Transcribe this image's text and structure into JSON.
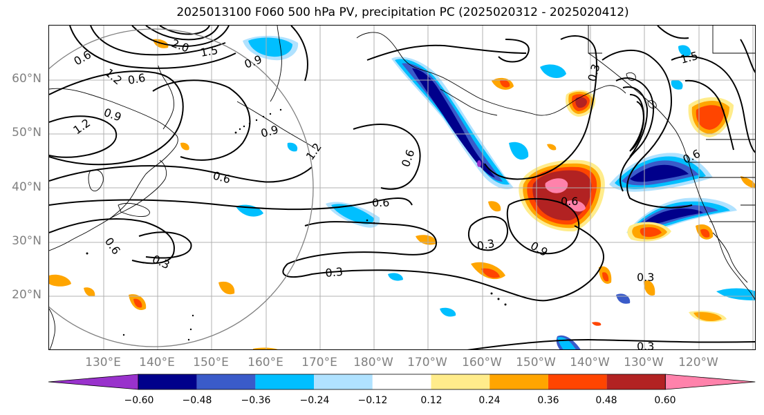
{
  "title": "2025013100 F060 500 hPa PV, precipitation PC (2025020312 - 2025020412)",
  "lat_labels": [
    "60°N",
    "50°N",
    "40°N",
    "30°N",
    "20°N"
  ],
  "lon_labels": [
    "130°E",
    "140°E",
    "150°E",
    "160°E",
    "170°E",
    "180°W",
    "170°W",
    "160°W",
    "150°W",
    "140°W",
    "130°W",
    "120°W"
  ],
  "colorbar": {
    "ticks": [
      "−0.60",
      "−0.48",
      "−0.36",
      "−0.24",
      "−0.12",
      "0.12",
      "0.24",
      "0.36",
      "0.48",
      "0.60"
    ],
    "colors": [
      "#9932cc",
      "#00008b",
      "#3a5bc9",
      "#00bfff",
      "#b0e2ff",
      "#ffffff",
      "#ffec8b",
      "#ffa500",
      "#ff4500",
      "#b22222",
      "#ff82ab"
    ]
  },
  "contour_labels": [
    "0.6",
    "1.2",
    "0.6",
    "0.9",
    "1.2",
    "0.9",
    "0.6",
    "0.6",
    "0.6",
    "0.3",
    "0.3",
    "0.6",
    "0.9",
    "0.3",
    "0.3",
    "0.3",
    "1.5",
    "0.6",
    "1.5",
    "0.6",
    "0.9",
    "1.2",
    "2.0",
    "0.3"
  ],
  "colors": {
    "land_line": "#000000",
    "grid": "#b0b0b0",
    "label_gray": "#808080"
  }
}
